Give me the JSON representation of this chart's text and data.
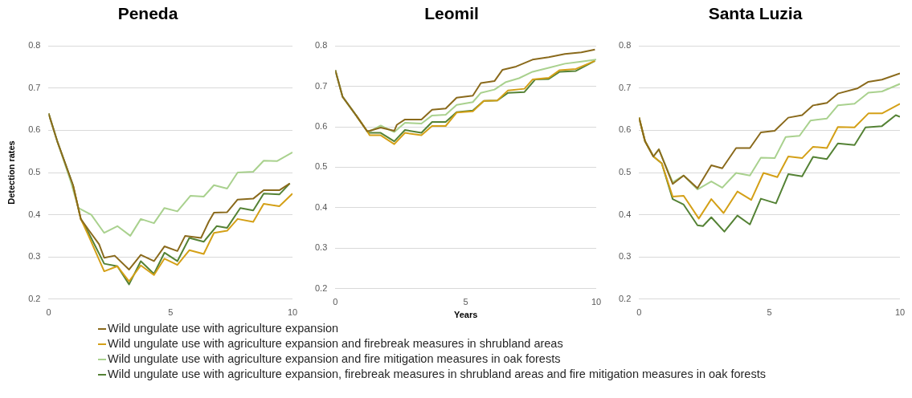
{
  "chart_data": [
    {
      "type": "line",
      "title": "Peneda",
      "ylabel": "Detection rates",
      "xlim": [
        0,
        10
      ],
      "xticks": [
        0,
        5,
        10
      ],
      "ylim": [
        0.2,
        0.8
      ],
      "yticks": [
        0.2,
        0.3,
        0.4,
        0.5,
        0.6,
        0.7,
        0.8
      ],
      "grid": "y",
      "legend": "bottom",
      "series": [
        {
          "name": "Wild ungulate use with agriculture expansion",
          "color": "#8a6a1c",
          "x": [
            0,
            0.35,
            1.0,
            1.32,
            1.64,
            2.07,
            2.28,
            2.71,
            3.3,
            3.78,
            4.32,
            4.75,
            5.28,
            5.6,
            6.25,
            6.57,
            6.78,
            7.32,
            7.75,
            8.39,
            8.82,
            9.46,
            9.89
          ],
          "values": [
            0.64,
            0.575,
            0.47,
            0.39,
            0.364,
            0.33,
            0.298,
            0.303,
            0.27,
            0.305,
            0.29,
            0.325,
            0.314,
            0.35,
            0.345,
            0.384,
            0.405,
            0.406,
            0.436,
            0.438,
            0.458,
            0.458,
            0.474
          ]
        },
        {
          "name": "Wild ungulate use with agriculture expansion and firebreak measures in shrubland areas",
          "color": "#d4a017",
          "x": [
            1.0,
            1.32,
            1.64,
            2.28,
            2.82,
            3.3,
            3.78,
            4.32,
            4.75,
            5.28,
            5.77,
            6.36,
            6.78,
            7.32,
            7.75,
            8.39,
            8.82,
            9.46,
            10
          ],
          "values": [
            0.47,
            0.39,
            0.35,
            0.266,
            0.278,
            0.242,
            0.28,
            0.257,
            0.296,
            0.281,
            0.316,
            0.307,
            0.357,
            0.362,
            0.39,
            0.383,
            0.426,
            0.42,
            0.45
          ]
        },
        {
          "name": "Wild ungulate use with agriculture expansion and fire mitigation measures in oak forests",
          "color": "#a9d18e",
          "x": [
            0,
            0.35,
            0.9,
            1.22,
            1.75,
            2.28,
            2.82,
            3.35,
            3.78,
            4.32,
            4.75,
            5.28,
            5.82,
            6.36,
            6.78,
            7.32,
            7.75,
            8.39,
            8.82,
            9.36,
            10
          ],
          "values": [
            0.64,
            0.575,
            0.48,
            0.416,
            0.4,
            0.357,
            0.373,
            0.35,
            0.39,
            0.38,
            0.416,
            0.408,
            0.445,
            0.443,
            0.47,
            0.462,
            0.5,
            0.502,
            0.528,
            0.527,
            0.548
          ]
        },
        {
          "name": "Wild ungulate use with agriculture expansion, firebreak measures in shrubland areas and fire mitigation measures in oak forests",
          "color": "#548235",
          "x": [
            0,
            0.35,
            1.0,
            1.32,
            1.64,
            2.28,
            2.82,
            3.3,
            3.78,
            4.32,
            4.75,
            5.28,
            5.77,
            6.36,
            6.89,
            7.32,
            7.86,
            8.39,
            8.82,
            9.46,
            9.89
          ],
          "values": [
            0.64,
            0.575,
            0.47,
            0.39,
            0.357,
            0.284,
            0.278,
            0.235,
            0.29,
            0.26,
            0.31,
            0.29,
            0.345,
            0.336,
            0.373,
            0.369,
            0.416,
            0.41,
            0.45,
            0.448,
            0.474
          ]
        }
      ]
    },
    {
      "type": "line",
      "title": "Leomil",
      "xlabel": "Years",
      "xlim": [
        0,
        10
      ],
      "xticks": [
        0,
        5,
        10
      ],
      "ylim": [
        0.2,
        0.8
      ],
      "yticks": [
        0.2,
        0.3,
        0.4,
        0.5,
        0.6,
        0.7,
        0.8
      ],
      "grid": "y",
      "series": [
        {
          "color": "#8a6a1c",
          "x": [
            0,
            0.28,
            0.8,
            1.22,
            1.32,
            1.74,
            2.26,
            2.36,
            2.67,
            3.3,
            3.71,
            4.23,
            4.65,
            5.27,
            5.58,
            6.1,
            6.41,
            6.93,
            7.56,
            8.18,
            8.8,
            9.43,
            9.95
          ],
          "values": [
            0.74,
            0.674,
            0.628,
            0.589,
            0.59,
            0.598,
            0.59,
            0.605,
            0.618,
            0.618,
            0.642,
            0.645,
            0.672,
            0.677,
            0.708,
            0.713,
            0.741,
            0.749,
            0.766,
            0.772,
            0.78,
            0.784,
            0.791
          ]
        },
        {
          "color": "#d4a017",
          "x": [
            0.8,
            1.22,
            1.32,
            1.74,
            2.26,
            2.67,
            3.3,
            3.71,
            4.23,
            4.65,
            5.27,
            5.69,
            6.21,
            6.62,
            7.25,
            7.56,
            8.18,
            8.6,
            9.22,
            9.95
          ],
          "values": [
            0.628,
            0.589,
            0.579,
            0.579,
            0.557,
            0.585,
            0.579,
            0.602,
            0.602,
            0.635,
            0.638,
            0.664,
            0.665,
            0.69,
            0.694,
            0.717,
            0.721,
            0.74,
            0.743,
            0.763
          ]
        },
        {
          "color": "#a9d18e",
          "x": [
            0,
            0.28,
            0.8,
            1.22,
            1.32,
            1.74,
            2.26,
            2.67,
            3.3,
            3.71,
            4.23,
            4.65,
            5.27,
            5.58,
            6.1,
            6.52,
            7.04,
            7.56,
            8.18,
            8.8,
            9.43,
            10
          ],
          "values": [
            0.74,
            0.674,
            0.628,
            0.589,
            0.589,
            0.603,
            0.587,
            0.61,
            0.608,
            0.628,
            0.63,
            0.654,
            0.661,
            0.684,
            0.692,
            0.71,
            0.72,
            0.736,
            0.746,
            0.756,
            0.761,
            0.766
          ]
        },
        {
          "color": "#548235",
          "x": [
            0,
            0.28,
            0.8,
            1.22,
            1.32,
            1.74,
            2.26,
            2.67,
            3.3,
            3.71,
            4.23,
            4.65,
            5.27,
            5.69,
            6.21,
            6.62,
            7.25,
            7.66,
            8.18,
            8.6,
            9.22,
            9.95
          ],
          "values": [
            0.74,
            0.674,
            0.628,
            0.589,
            0.585,
            0.585,
            0.564,
            0.592,
            0.585,
            0.612,
            0.612,
            0.636,
            0.64,
            0.664,
            0.665,
            0.684,
            0.686,
            0.717,
            0.718,
            0.736,
            0.738,
            0.763
          ]
        }
      ]
    },
    {
      "type": "line",
      "title": "Santa Luzia",
      "xlim": [
        0,
        10
      ],
      "xticks": [
        0,
        5,
        10
      ],
      "ylim": [
        0.2,
        0.8
      ],
      "yticks": [
        0.2,
        0.3,
        0.4,
        0.5,
        0.6,
        0.7,
        0.8
      ],
      "grid": "y",
      "series": [
        {
          "color": "#8a6a1c",
          "x": [
            0,
            0.23,
            0.55,
            0.76,
            1.29,
            1.71,
            2.24,
            2.77,
            3.19,
            3.72,
            4.25,
            4.67,
            5.2,
            5.72,
            6.25,
            6.67,
            7.2,
            7.62,
            8.36,
            8.79,
            9.31,
            10
          ],
          "values": [
            0.63,
            0.574,
            0.538,
            0.555,
            0.473,
            0.493,
            0.463,
            0.517,
            0.51,
            0.558,
            0.558,
            0.595,
            0.599,
            0.63,
            0.636,
            0.659,
            0.665,
            0.687,
            0.699,
            0.715,
            0.72,
            0.735
          ]
        },
        {
          "color": "#d4a017",
          "x": [
            0,
            0.23,
            0.55,
            0.87,
            1.29,
            1.71,
            2.29,
            2.77,
            3.24,
            3.77,
            4.3,
            4.77,
            5.3,
            5.72,
            6.25,
            6.67,
            7.2,
            7.62,
            8.26,
            8.79,
            9.31,
            10
          ],
          "values": [
            0.63,
            0.574,
            0.538,
            0.522,
            0.443,
            0.445,
            0.391,
            0.437,
            0.404,
            0.455,
            0.435,
            0.499,
            0.489,
            0.538,
            0.534,
            0.561,
            0.558,
            0.608,
            0.607,
            0.64,
            0.64,
            0.663
          ]
        },
        {
          "color": "#a9d18e",
          "x": [
            0,
            0.23,
            0.55,
            0.76,
            1.29,
            1.71,
            2.24,
            2.77,
            3.19,
            3.72,
            4.25,
            4.67,
            5.2,
            5.62,
            6.15,
            6.57,
            7.2,
            7.62,
            8.26,
            8.79,
            9.31,
            10
          ],
          "values": [
            0.63,
            0.574,
            0.538,
            0.555,
            0.477,
            0.493,
            0.46,
            0.479,
            0.464,
            0.499,
            0.493,
            0.535,
            0.534,
            0.584,
            0.587,
            0.623,
            0.628,
            0.659,
            0.663,
            0.689,
            0.692,
            0.71
          ]
        },
        {
          "color": "#548235",
          "x": [
            0,
            0.23,
            0.55,
            0.87,
            1.29,
            1.71,
            2.24,
            2.45,
            2.77,
            3.27,
            3.77,
            4.25,
            4.67,
            5.25,
            5.72,
            6.25,
            6.67,
            7.2,
            7.62,
            8.26,
            8.68,
            9.31,
            9.84,
            10
          ],
          "values": [
            0.63,
            0.574,
            0.538,
            0.522,
            0.437,
            0.424,
            0.375,
            0.373,
            0.394,
            0.36,
            0.398,
            0.377,
            0.438,
            0.427,
            0.496,
            0.491,
            0.537,
            0.532,
            0.569,
            0.565,
            0.607,
            0.61,
            0.636,
            0.632
          ]
        }
      ]
    }
  ]
}
